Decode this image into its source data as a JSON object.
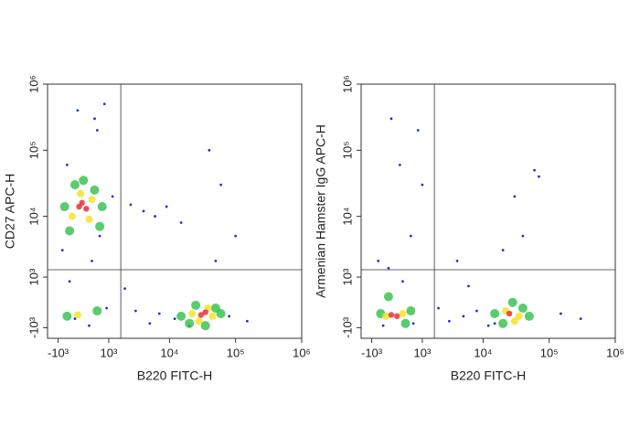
{
  "chart_data": [
    {
      "type": "scatter",
      "xlabel": "B220 FITC-H",
      "ylabel": "CD27 APC-H",
      "scale": "biexponential",
      "xlim": [
        -1600,
        1000000
      ],
      "ylim": [
        -1600,
        1000000
      ],
      "xticks": [
        {
          "value": -1000,
          "label": "-10³"
        },
        {
          "value": 1000,
          "label": "10³"
        },
        {
          "value": 10000,
          "label": "10⁴"
        },
        {
          "value": 100000,
          "label": "10⁵"
        },
        {
          "value": 1000000,
          "label": "10⁶"
        }
      ],
      "yticks": [
        {
          "value": -1000,
          "label": "-10³"
        },
        {
          "value": 1000,
          "label": "10³"
        },
        {
          "value": 10000,
          "label": "10⁴"
        },
        {
          "value": 100000,
          "label": "10⁵"
        },
        {
          "value": 1000000,
          "label": "10⁶"
        }
      ],
      "gate_x": 1700,
      "gate_y": 1400,
      "series": [
        {
          "color": "#1e32d8",
          "x": [
            -800,
            -500,
            300,
            600,
            200,
            -300,
            900,
            1200,
            2500,
            4000,
            6000,
            9000,
            15000,
            3000,
            -600,
            500,
            800,
            40000,
            60000,
            80000,
            150000,
            20000,
            12000,
            7000,
            -200,
            400,
            100000,
            50000,
            2000,
            5000
          ],
          "y": [
            3000,
            800,
            2000,
            5000,
            -900,
            -600,
            -200,
            20000,
            15000,
            12000,
            10000,
            14000,
            8000,
            -300,
            60000,
            200000,
            500000,
            100000,
            30000,
            -500,
            -700,
            -900,
            -600,
            -400,
            400000,
            300000,
            5000,
            2000,
            500,
            -800
          ]
        },
        {
          "color": "#2fbf4a",
          "x": [
            -700,
            700,
            -500,
            600,
            0,
            -300,
            400,
            15000,
            60000,
            20000,
            50000,
            35000,
            25000,
            -600,
            500
          ],
          "y": [
            14000,
            14000,
            6000,
            7000,
            35000,
            30000,
            25000,
            -500,
            -400,
            -800,
            -200,
            -900,
            -100,
            -500,
            -300
          ]
        },
        {
          "color": "#f2e21c",
          "x": [
            -400,
            300,
            -100,
            200,
            22000,
            45000,
            28000,
            38000,
            -200
          ],
          "y": [
            10000,
            18000,
            22000,
            9000,
            -400,
            -500,
            -700,
            -200,
            -450
          ]
        },
        {
          "color": "#e8202a",
          "x": [
            -150,
            100,
            -50,
            30000,
            35000
          ],
          "y": [
            14000,
            13000,
            16000,
            -450,
            -350
          ]
        }
      ]
    },
    {
      "type": "scatter",
      "xlabel": "B220 FITC-H",
      "ylabel": "Armenian Hamster IgG APC-H",
      "scale": "biexponential",
      "xlim": [
        -1600,
        1000000
      ],
      "ylim": [
        -1600,
        1000000
      ],
      "xticks": [
        {
          "value": -1000,
          "label": "-10³"
        },
        {
          "value": 1000,
          "label": "10³"
        },
        {
          "value": 10000,
          "label": "10⁴"
        },
        {
          "value": 100000,
          "label": "10⁵"
        },
        {
          "value": 1000000,
          "label": "10⁶"
        }
      ],
      "yticks": [
        {
          "value": -1000,
          "label": "-10³"
        },
        {
          "value": 1000,
          "label": "10³"
        },
        {
          "value": 10000,
          "label": "10⁴"
        },
        {
          "value": 100000,
          "label": "10⁵"
        },
        {
          "value": 1000000,
          "label": "10⁶"
        }
      ],
      "gate_x": 1700,
      "gate_y": 1400,
      "series": [
        {
          "color": "#1e32d8",
          "x": [
            -700,
            -300,
            200,
            500,
            800,
            2000,
            3000,
            5000,
            8000,
            12000,
            20000,
            40000,
            70000,
            150000,
            300000,
            -500,
            600,
            1000,
            4000,
            30000,
            60000,
            -200,
            100,
            15000,
            6000
          ],
          "y": [
            2000,
            1500,
            800,
            5000,
            200000,
            -200,
            -700,
            -500,
            -300,
            -900,
            3000,
            5000,
            40000,
            -400,
            -600,
            -900,
            -800,
            30000,
            2000,
            20000,
            50000,
            300000,
            60000,
            -800,
            600
          ]
        },
        {
          "color": "#2fbf4a",
          "x": [
            -600,
            500,
            -300,
            300,
            15000,
            50000,
            20000,
            40000,
            28000
          ],
          "y": [
            -400,
            -300,
            200,
            -800,
            -400,
            -500,
            -800,
            -200,
            0
          ]
        },
        {
          "color": "#f2e21c",
          "x": [
            -400,
            200,
            22000,
            35000,
            30000
          ],
          "y": [
            -500,
            -400,
            -300,
            -500,
            -700
          ]
        },
        {
          "color": "#e8202a",
          "x": [
            -200,
            0,
            25000
          ],
          "y": [
            -450,
            -500,
            -400
          ]
        }
      ]
    }
  ]
}
